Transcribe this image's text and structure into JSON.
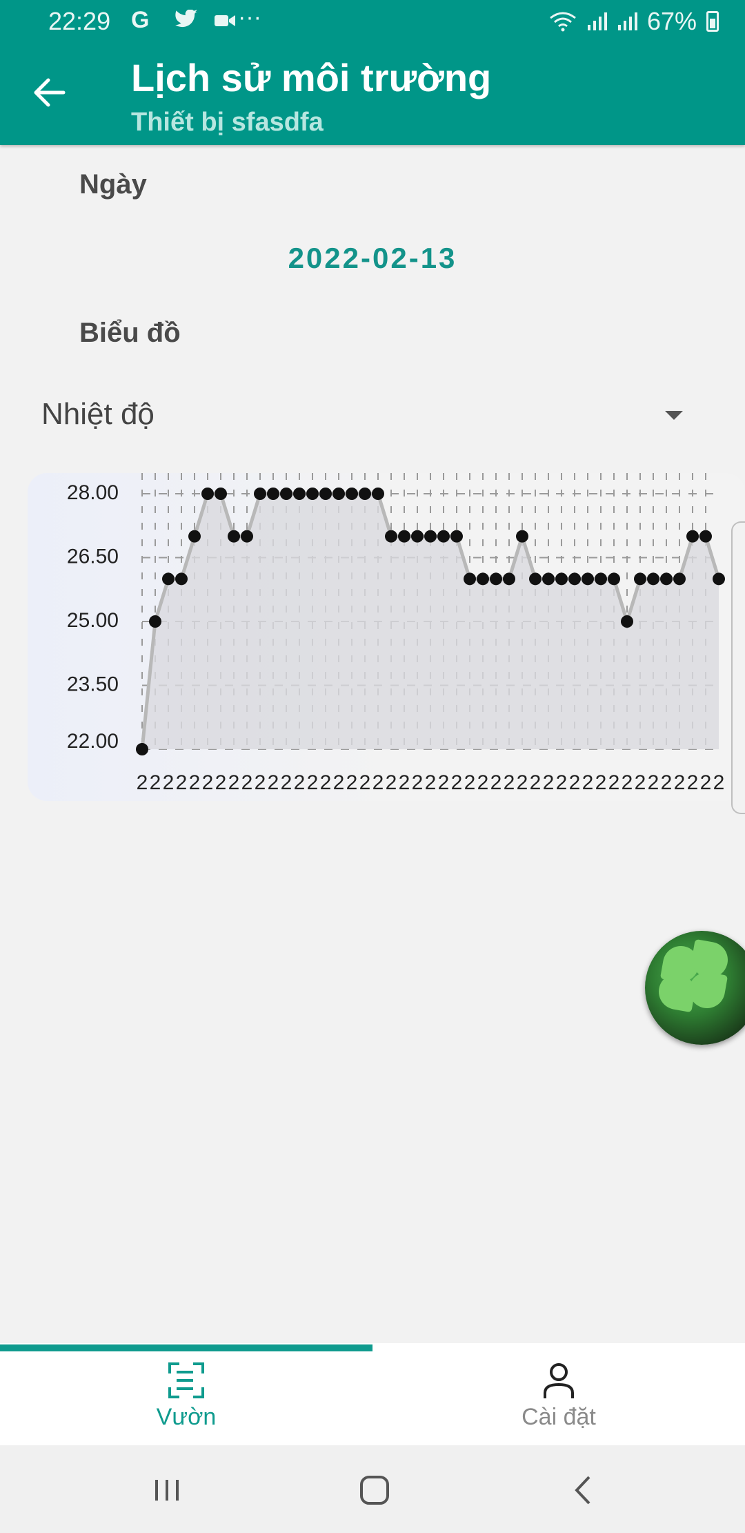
{
  "status_bar": {
    "time": "22:29",
    "left_icons": "G",
    "more": "···",
    "battery": "67%"
  },
  "app_bar": {
    "title": "Lịch sử môi trường",
    "subtitle": "Thiết bị sfasdfa"
  },
  "form": {
    "date_label": "Ngày",
    "date_value": "2022-02-13",
    "chart_label": "Biểu đồ",
    "metric_select": "Nhiệt độ"
  },
  "chart_data": {
    "type": "line",
    "y_ticks": [
      "28.00",
      "26.50",
      "25.00",
      "23.50",
      "22.00"
    ],
    "y_tick_values": [
      28.0,
      26.5,
      25.0,
      23.5,
      22.0
    ],
    "ylim": [
      22.0,
      28.0
    ],
    "x_tick_label": "2",
    "values": [
      22.0,
      25.0,
      26.0,
      26.0,
      27.0,
      28.0,
      28.0,
      27.0,
      27.0,
      28.0,
      28.0,
      28.0,
      28.0,
      28.0,
      28.0,
      28.0,
      28.0,
      28.0,
      28.0,
      27.0,
      27.0,
      27.0,
      27.0,
      27.0,
      27.0,
      26.0,
      26.0,
      26.0,
      26.0,
      27.0,
      26.0,
      26.0,
      26.0,
      26.0,
      26.0,
      26.0,
      26.0,
      25.0,
      26.0,
      26.0,
      26.0,
      26.0,
      27.0,
      27.0,
      26.0
    ],
    "grid": true,
    "line_color": "#b8b8b8",
    "area_color": "#d9d9de",
    "point_color": "#111111"
  },
  "bottom_nav": {
    "items": [
      {
        "label": "Vườn",
        "icon": "garden-scan-icon",
        "active": true
      },
      {
        "label": "Cài đặt",
        "icon": "person-icon",
        "active": false
      }
    ],
    "active_color": "#0f9b8e",
    "inactive_color": "#8a8a8a"
  }
}
